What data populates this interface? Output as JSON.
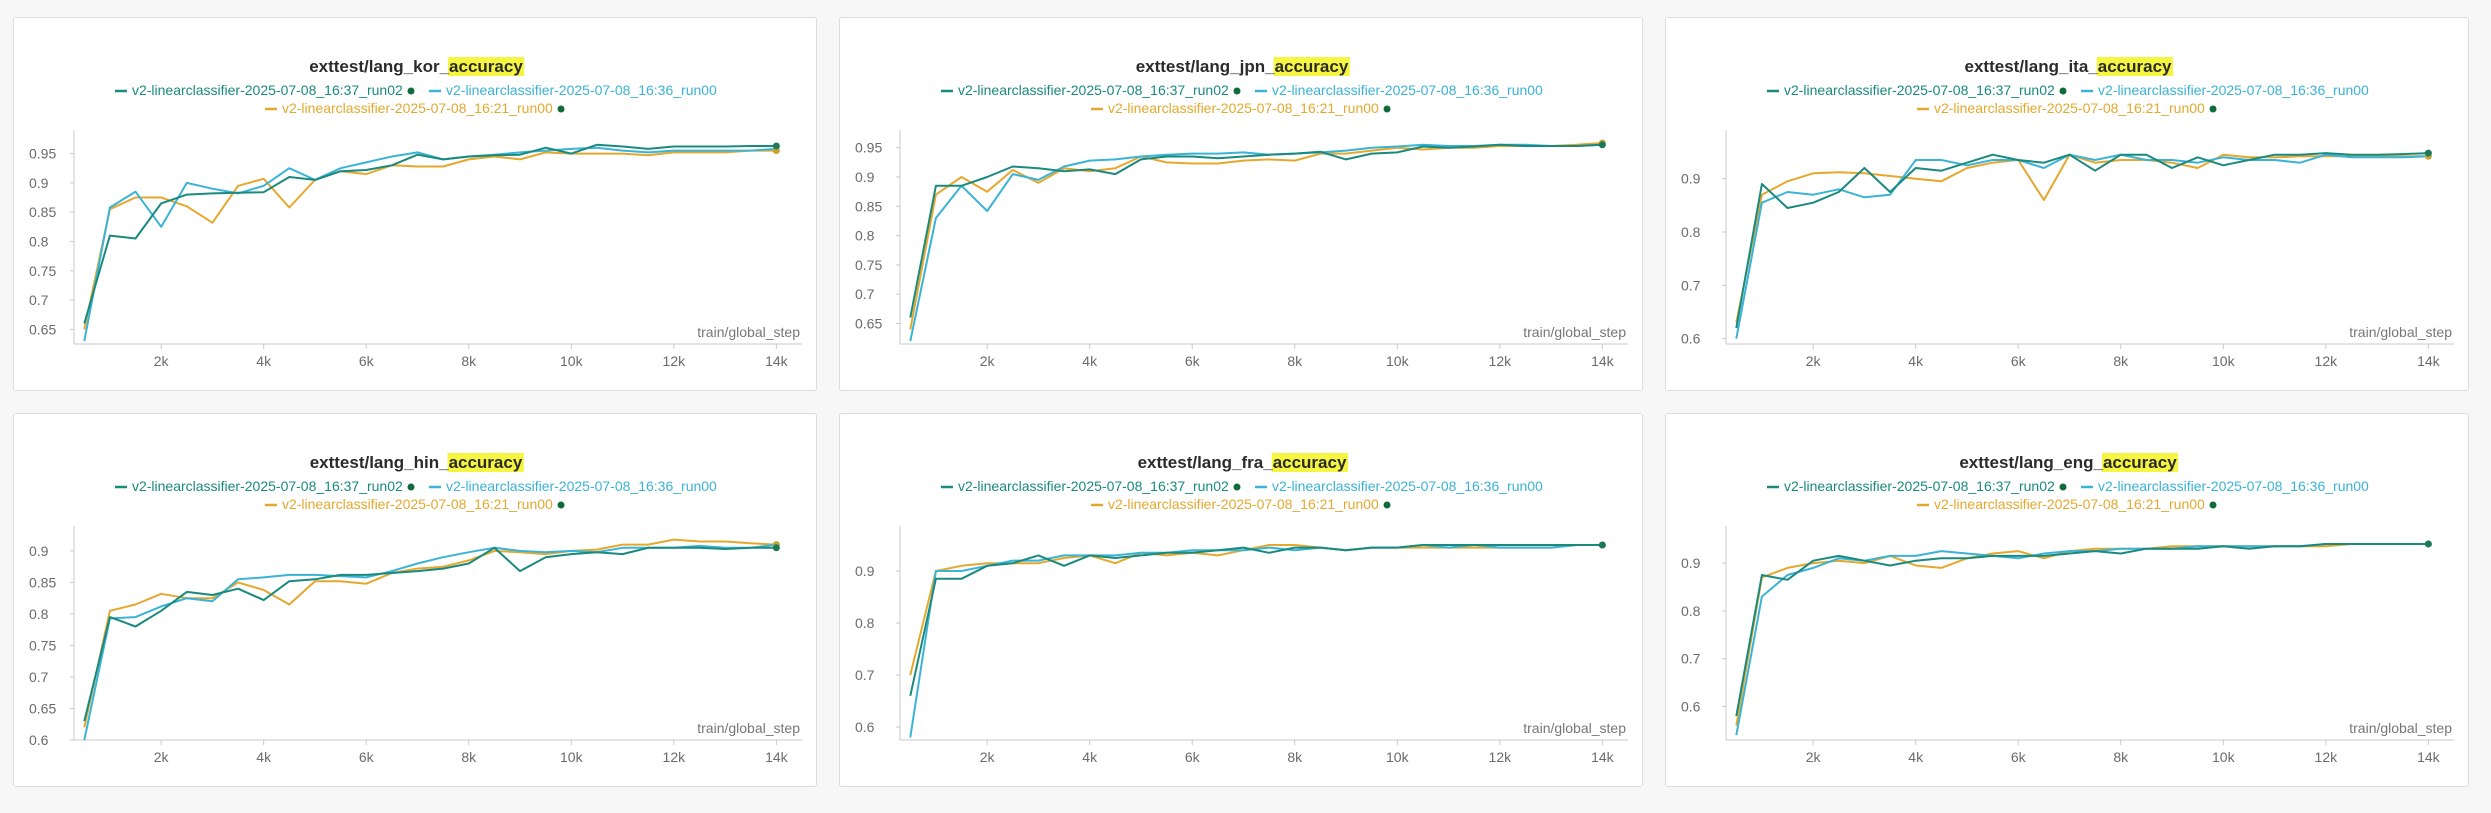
{
  "legend": {
    "series": [
      {
        "name": "v2-linearclassifier-2025-07-08_16:37_run02",
        "color": "#1a8a7e"
      },
      {
        "name": "v2-linearclassifier-2025-07-08_16:36_run00",
        "color": "#3bb3d6"
      },
      {
        "name": "v2-linearclassifier-2025-07-08_16:21_run00",
        "color": "#e5a82e"
      }
    ]
  },
  "chart_data": [
    {
      "type": "line",
      "title": "exttest/lang_kor_accuracy",
      "title_prefix": "exttest/lang_kor_",
      "title_highlight": "accuracy",
      "xlabel": "train/global_step",
      "xlim": [
        300,
        14500
      ],
      "ylim": [
        0.625,
        0.98
      ],
      "xticks": [
        2000,
        4000,
        6000,
        8000,
        10000,
        12000,
        14000
      ],
      "xtick_labels": [
        "2k",
        "4k",
        "6k",
        "8k",
        "10k",
        "12k",
        "14k"
      ],
      "yticks": [
        0.65,
        0.7,
        0.75,
        0.8,
        0.85,
        0.9,
        0.95
      ],
      "ytick_labels": [
        "0.65",
        "0.7",
        "0.75",
        "0.8",
        "0.85",
        "0.9",
        "0.95"
      ],
      "x": [
        500,
        1000,
        1500,
        2000,
        2500,
        3000,
        3500,
        4000,
        4500,
        5000,
        5500,
        6000,
        6500,
        7000,
        7500,
        8000,
        8500,
        9000,
        9500,
        10000,
        10500,
        11000,
        11500,
        12000,
        12500,
        13000,
        13500,
        14000
      ],
      "series": [
        {
          "values": [
            0.66,
            0.81,
            0.805,
            0.865,
            0.88,
            0.882,
            0.883,
            0.884,
            0.91,
            0.905,
            0.92,
            0.922,
            0.93,
            0.948,
            0.94,
            0.945,
            0.947,
            0.948,
            0.96,
            0.95,
            0.965,
            0.962,
            0.958,
            0.962,
            0.962,
            0.962,
            0.963,
            0.963
          ]
        },
        {
          "values": [
            0.63,
            0.858,
            0.885,
            0.825,
            0.9,
            0.89,
            0.882,
            0.895,
            0.925,
            0.905,
            0.925,
            0.935,
            0.945,
            0.952,
            0.94,
            0.945,
            0.948,
            0.952,
            0.955,
            0.958,
            0.96,
            0.955,
            0.952,
            0.955,
            0.955,
            0.955,
            0.955,
            0.958
          ]
        },
        {
          "values": [
            0.65,
            0.855,
            0.875,
            0.875,
            0.86,
            0.832,
            0.895,
            0.907,
            0.858,
            0.905,
            0.92,
            0.915,
            0.93,
            0.928,
            0.928,
            0.94,
            0.945,
            0.94,
            0.952,
            0.95,
            0.95,
            0.95,
            0.947,
            0.952,
            0.952,
            0.952,
            0.955,
            0.955
          ]
        }
      ]
    },
    {
      "type": "line",
      "title": "exttest/lang_jpn_accuracy",
      "title_prefix": "exttest/lang_jpn_",
      "title_highlight": "accuracy",
      "xlabel": "train/global_step",
      "xlim": [
        300,
        14500
      ],
      "ylim": [
        0.615,
        0.97
      ],
      "xticks": [
        2000,
        4000,
        6000,
        8000,
        10000,
        12000,
        14000
      ],
      "xtick_labels": [
        "2k",
        "4k",
        "6k",
        "8k",
        "10k",
        "12k",
        "14k"
      ],
      "yticks": [
        0.65,
        0.7,
        0.75,
        0.8,
        0.85,
        0.9,
        0.95
      ],
      "ytick_labels": [
        "0.65",
        "0.7",
        "0.75",
        "0.8",
        "0.85",
        "0.9",
        "0.95"
      ],
      "x": [
        500,
        1000,
        1500,
        2000,
        2500,
        3000,
        3500,
        4000,
        4500,
        5000,
        5500,
        6000,
        6500,
        7000,
        7500,
        8000,
        8500,
        9000,
        9500,
        10000,
        10500,
        11000,
        11500,
        12000,
        12500,
        13000,
        13500,
        14000
      ],
      "series": [
        {
          "values": [
            0.66,
            0.885,
            0.885,
            0.9,
            0.918,
            0.915,
            0.91,
            0.913,
            0.905,
            0.93,
            0.935,
            0.935,
            0.932,
            0.935,
            0.938,
            0.94,
            0.943,
            0.93,
            0.94,
            0.942,
            0.952,
            0.95,
            0.952,
            0.955,
            0.953,
            0.953,
            0.953,
            0.955
          ]
        },
        {
          "values": [
            0.62,
            0.83,
            0.885,
            0.842,
            0.905,
            0.895,
            0.918,
            0.928,
            0.93,
            0.935,
            0.938,
            0.94,
            0.94,
            0.942,
            0.938,
            0.94,
            0.942,
            0.945,
            0.95,
            0.952,
            0.955,
            0.953,
            0.953,
            0.955,
            0.955,
            0.953,
            0.953,
            0.955
          ]
        },
        {
          "values": [
            0.64,
            0.87,
            0.9,
            0.875,
            0.912,
            0.89,
            0.915,
            0.91,
            0.915,
            0.935,
            0.925,
            0.923,
            0.923,
            0.928,
            0.93,
            0.928,
            0.94,
            0.94,
            0.945,
            0.95,
            0.947,
            0.95,
            0.95,
            0.953,
            0.953,
            0.953,
            0.955,
            0.958
          ]
        }
      ]
    },
    {
      "type": "line",
      "title": "exttest/lang_ita_accuracy",
      "title_prefix": "exttest/lang_ita_",
      "title_highlight": "accuracy",
      "xlabel": "train/global_step",
      "xlim": [
        300,
        14500
      ],
      "ylim": [
        0.59,
        0.98
      ],
      "xticks": [
        2000,
        4000,
        6000,
        8000,
        10000,
        12000,
        14000
      ],
      "xtick_labels": [
        "2k",
        "4k",
        "6k",
        "8k",
        "10k",
        "12k",
        "14k"
      ],
      "yticks": [
        0.6,
        0.7,
        0.8,
        0.9
      ],
      "ytick_labels": [
        "0.6",
        "0.7",
        "0.8",
        "0.9"
      ],
      "x": [
        500,
        1000,
        1500,
        2000,
        2500,
        3000,
        3500,
        4000,
        4500,
        5000,
        5500,
        6000,
        6500,
        7000,
        7500,
        8000,
        8500,
        9000,
        9500,
        10000,
        10500,
        11000,
        11500,
        12000,
        12500,
        13000,
        13500,
        14000
      ],
      "series": [
        {
          "values": [
            0.62,
            0.89,
            0.845,
            0.855,
            0.875,
            0.92,
            0.875,
            0.92,
            0.915,
            0.93,
            0.945,
            0.935,
            0.93,
            0.945,
            0.915,
            0.945,
            0.945,
            0.92,
            0.94,
            0.925,
            0.935,
            0.945,
            0.945,
            0.948,
            0.945,
            0.945,
            0.946,
            0.948
          ]
        },
        {
          "values": [
            0.6,
            0.855,
            0.875,
            0.87,
            0.88,
            0.865,
            0.87,
            0.935,
            0.935,
            0.925,
            0.935,
            0.935,
            0.92,
            0.945,
            0.935,
            0.945,
            0.935,
            0.935,
            0.93,
            0.94,
            0.935,
            0.935,
            0.93,
            0.945,
            0.94,
            0.94,
            0.94,
            0.942
          ]
        },
        {
          "values": [
            0.63,
            0.87,
            0.895,
            0.91,
            0.912,
            0.91,
            0.905,
            0.9,
            0.895,
            0.92,
            0.93,
            0.935,
            0.86,
            0.945,
            0.93,
            0.935,
            0.935,
            0.93,
            0.92,
            0.945,
            0.94,
            0.94,
            0.942,
            0.942,
            0.942,
            0.942,
            0.942,
            0.942
          ]
        }
      ]
    },
    {
      "type": "line",
      "title": "exttest/lang_hin_accuracy",
      "title_prefix": "exttest/lang_hin_",
      "title_highlight": "accuracy",
      "xlabel": "train/global_step",
      "xlim": [
        300,
        14500
      ],
      "ylim": [
        0.6,
        0.93
      ],
      "xticks": [
        2000,
        4000,
        6000,
        8000,
        10000,
        12000,
        14000
      ],
      "xtick_labels": [
        "2k",
        "4k",
        "6k",
        "8k",
        "10k",
        "12k",
        "14k"
      ],
      "yticks": [
        0.6,
        0.65,
        0.7,
        0.75,
        0.8,
        0.85,
        0.9
      ],
      "ytick_labels": [
        "0.6",
        "0.65",
        "0.7",
        "0.75",
        "0.8",
        "0.85",
        "0.9"
      ],
      "x": [
        500,
        1000,
        1500,
        2000,
        2500,
        3000,
        3500,
        4000,
        4500,
        5000,
        5500,
        6000,
        6500,
        7000,
        7500,
        8000,
        8500,
        9000,
        9500,
        10000,
        10500,
        11000,
        11500,
        12000,
        12500,
        13000,
        13500,
        14000
      ],
      "series": [
        {
          "values": [
            0.63,
            0.795,
            0.78,
            0.805,
            0.835,
            0.83,
            0.84,
            0.822,
            0.852,
            0.855,
            0.862,
            0.862,
            0.865,
            0.868,
            0.872,
            0.88,
            0.905,
            0.868,
            0.89,
            0.895,
            0.898,
            0.895,
            0.905,
            0.905,
            0.905,
            0.903,
            0.905,
            0.905
          ]
        },
        {
          "values": [
            0.6,
            0.793,
            0.795,
            0.812,
            0.825,
            0.82,
            0.855,
            0.858,
            0.862,
            0.862,
            0.86,
            0.858,
            0.868,
            0.88,
            0.89,
            0.898,
            0.905,
            0.9,
            0.898,
            0.9,
            0.898,
            0.905,
            0.905,
            0.905,
            0.908,
            0.905,
            0.905,
            0.91
          ]
        },
        {
          "values": [
            0.62,
            0.805,
            0.815,
            0.832,
            0.825,
            0.825,
            0.85,
            0.838,
            0.815,
            0.852,
            0.852,
            0.848,
            0.865,
            0.872,
            0.875,
            0.885,
            0.9,
            0.898,
            0.895,
            0.9,
            0.902,
            0.91,
            0.91,
            0.918,
            0.915,
            0.915,
            0.912,
            0.91
          ]
        }
      ]
    },
    {
      "type": "line",
      "title": "exttest/lang_fra_accuracy",
      "title_prefix": "exttest/lang_fra_",
      "title_highlight": "accuracy",
      "xlabel": "train/global_step",
      "xlim": [
        300,
        14500
      ],
      "ylim": [
        0.575,
        0.975
      ],
      "xticks": [
        2000,
        4000,
        6000,
        8000,
        10000,
        12000,
        14000
      ],
      "xtick_labels": [
        "2k",
        "4k",
        "6k",
        "8k",
        "10k",
        "12k",
        "14k"
      ],
      "yticks": [
        0.6,
        0.7,
        0.8,
        0.9
      ],
      "ytick_labels": [
        "0.6",
        "0.7",
        "0.8",
        "0.9"
      ],
      "x": [
        500,
        1000,
        1500,
        2000,
        2500,
        3000,
        3500,
        4000,
        4500,
        5000,
        5500,
        6000,
        6500,
        7000,
        7500,
        8000,
        8500,
        9000,
        9500,
        10000,
        10500,
        11000,
        11500,
        12000,
        12500,
        13000,
        13500,
        14000
      ],
      "series": [
        {
          "values": [
            0.66,
            0.885,
            0.885,
            0.91,
            0.915,
            0.93,
            0.91,
            0.93,
            0.925,
            0.93,
            0.935,
            0.935,
            0.94,
            0.945,
            0.935,
            0.945,
            0.945,
            0.94,
            0.945,
            0.945,
            0.95,
            0.95,
            0.95,
            0.95,
            0.95,
            0.95,
            0.95,
            0.95
          ]
        },
        {
          "values": [
            0.58,
            0.9,
            0.9,
            0.91,
            0.92,
            0.92,
            0.93,
            0.93,
            0.93,
            0.935,
            0.935,
            0.94,
            0.94,
            0.94,
            0.945,
            0.94,
            0.945,
            0.94,
            0.945,
            0.945,
            0.95,
            0.945,
            0.95,
            0.945,
            0.945,
            0.945,
            0.95,
            0.95
          ]
        },
        {
          "values": [
            0.7,
            0.9,
            0.91,
            0.915,
            0.915,
            0.915,
            0.925,
            0.93,
            0.915,
            0.935,
            0.93,
            0.935,
            0.93,
            0.94,
            0.95,
            0.95,
            0.945,
            0.94,
            0.945,
            0.945,
            0.945,
            0.945,
            0.945,
            0.945,
            0.945,
            0.945,
            0.95,
            0.95
          ]
        }
      ]
    },
    {
      "type": "line",
      "title": "exttest/lang_eng_accuracy",
      "title_prefix": "exttest/lang_eng_",
      "title_highlight": "accuracy",
      "xlabel": "train/global_step",
      "xlim": [
        300,
        14500
      ],
      "ylim": [
        0.53,
        0.965
      ],
      "xticks": [
        2000,
        4000,
        6000,
        8000,
        10000,
        12000,
        14000
      ],
      "xtick_labels": [
        "2k",
        "4k",
        "6k",
        "8k",
        "10k",
        "12k",
        "14k"
      ],
      "yticks": [
        0.6,
        0.7,
        0.8,
        0.9
      ],
      "ytick_labels": [
        "0.6",
        "0.7",
        "0.8",
        "0.9"
      ],
      "x": [
        500,
        1000,
        1500,
        2000,
        2500,
        3000,
        3500,
        4000,
        4500,
        5000,
        5500,
        6000,
        6500,
        7000,
        7500,
        8000,
        8500,
        9000,
        9500,
        10000,
        10500,
        11000,
        11500,
        12000,
        12500,
        13000,
        13500,
        14000
      ],
      "series": [
        {
          "values": [
            0.58,
            0.875,
            0.865,
            0.905,
            0.915,
            0.905,
            0.895,
            0.905,
            0.91,
            0.91,
            0.915,
            0.915,
            0.915,
            0.92,
            0.925,
            0.92,
            0.93,
            0.93,
            0.93,
            0.935,
            0.93,
            0.935,
            0.935,
            0.94,
            0.94,
            0.94,
            0.94,
            0.94
          ]
        },
        {
          "values": [
            0.54,
            0.83,
            0.875,
            0.89,
            0.91,
            0.905,
            0.915,
            0.915,
            0.925,
            0.92,
            0.915,
            0.91,
            0.92,
            0.925,
            0.925,
            0.93,
            0.93,
            0.93,
            0.935,
            0.935,
            0.935,
            0.935,
            0.935,
            0.94,
            0.94,
            0.94,
            0.94,
            0.94
          ]
        },
        {
          "values": [
            0.56,
            0.87,
            0.89,
            0.9,
            0.905,
            0.9,
            0.915,
            0.895,
            0.89,
            0.91,
            0.92,
            0.925,
            0.91,
            0.925,
            0.93,
            0.93,
            0.93,
            0.935,
            0.935,
            0.935,
            0.935,
            0.935,
            0.935,
            0.935,
            0.94,
            0.94,
            0.94,
            0.94
          ]
        }
      ]
    }
  ]
}
